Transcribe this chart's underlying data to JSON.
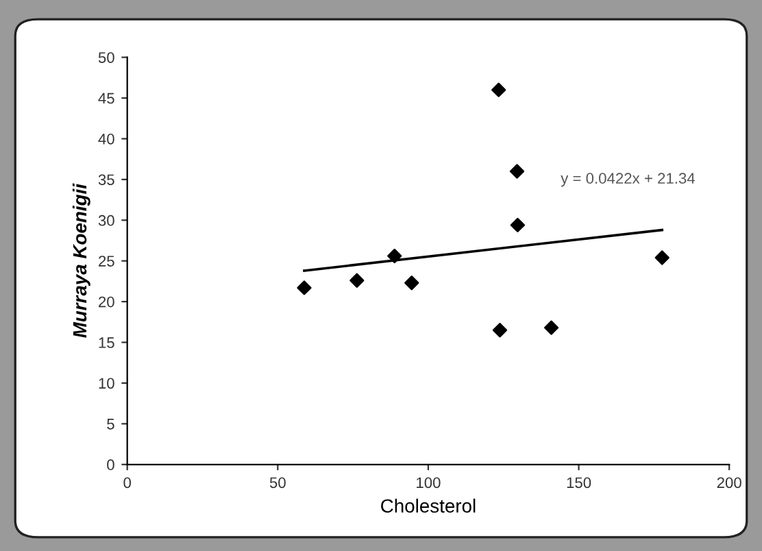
{
  "chart_data": {
    "type": "scatter",
    "xlabel": "Cholesterol",
    "ylabel": "Murraya Koenigii",
    "series": [
      {
        "color": "#000000",
        "marker": "diamond",
        "x": [
          58.8,
          76.3,
          88.8,
          94.5,
          123.4,
          123.8,
          129.5,
          129.7,
          140.9,
          177.7
        ],
        "values": [
          21.7,
          22.6,
          25.6,
          22.3,
          46.0,
          16.5,
          36.0,
          29.4,
          16.8,
          25.4
        ]
      },
      {
        "type": "line",
        "color": "#000000",
        "marker": "none",
        "line_style": "solid",
        "x": [
          58.8,
          177.7
        ],
        "values": [
          23.8,
          28.8
        ]
      }
    ],
    "annotations": [
      "y = 0.0422x + 21.34"
    ],
    "xlim": [
      0,
      200
    ],
    "xticks": [
      0,
      50,
      100,
      150,
      200
    ],
    "ylim": [
      0,
      50
    ],
    "yticks": [
      0,
      5,
      10,
      15,
      20,
      25,
      30,
      35,
      40,
      45,
      50
    ],
    "grid": false,
    "legend": false
  }
}
